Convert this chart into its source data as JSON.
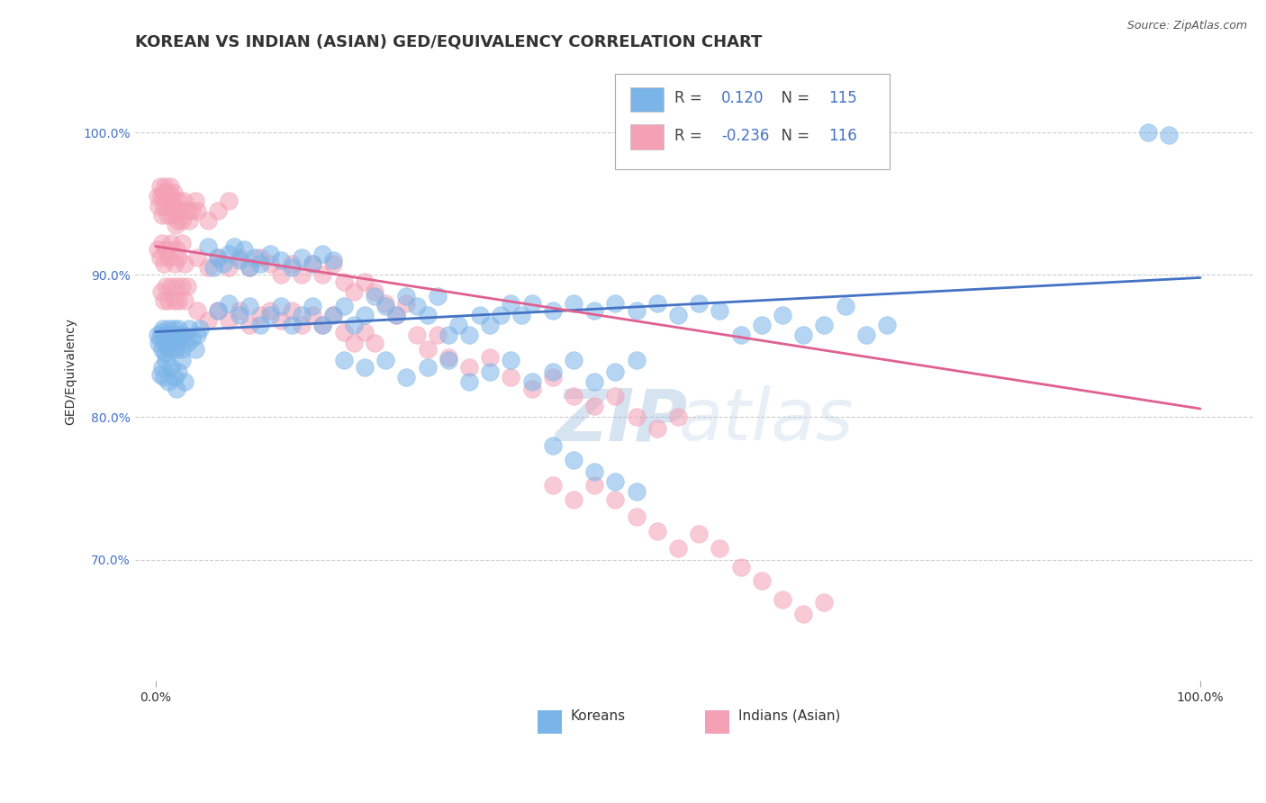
{
  "title": "KOREAN VS INDIAN (ASIAN) GED/EQUIVALENCY CORRELATION CHART",
  "source": "Source: ZipAtlas.com",
  "ylabel": "GED/Equivalency",
  "y_tick_labels": [
    "70.0%",
    "80.0%",
    "90.0%",
    "100.0%"
  ],
  "y_tick_values": [
    0.7,
    0.8,
    0.9,
    1.0
  ],
  "x_range": [
    -0.02,
    1.05
  ],
  "y_range": [
    0.615,
    1.05
  ],
  "legend_entries": [
    {
      "label": "Koreans",
      "color": "#7ab4e8",
      "R": "0.120",
      "N": "115"
    },
    {
      "label": "Indians (Asian)",
      "color": "#f4a0b5",
      "R": "-0.236",
      "N": "116"
    }
  ],
  "blue_scatter": [
    [
      0.002,
      0.858
    ],
    [
      0.003,
      0.852
    ],
    [
      0.004,
      0.855
    ],
    [
      0.005,
      0.86
    ],
    [
      0.006,
      0.848
    ],
    [
      0.007,
      0.862
    ],
    [
      0.008,
      0.855
    ],
    [
      0.009,
      0.845
    ],
    [
      0.01,
      0.858
    ],
    [
      0.011,
      0.85
    ],
    [
      0.012,
      0.862
    ],
    [
      0.013,
      0.855
    ],
    [
      0.014,
      0.848
    ],
    [
      0.015,
      0.858
    ],
    [
      0.016,
      0.852
    ],
    [
      0.017,
      0.862
    ],
    [
      0.018,
      0.855
    ],
    [
      0.019,
      0.848
    ],
    [
      0.02,
      0.858
    ],
    [
      0.021,
      0.852
    ],
    [
      0.022,
      0.862
    ],
    [
      0.023,
      0.855
    ],
    [
      0.025,
      0.848
    ],
    [
      0.027,
      0.858
    ],
    [
      0.03,
      0.852
    ],
    [
      0.032,
      0.862
    ],
    [
      0.035,
      0.855
    ],
    [
      0.038,
      0.848
    ],
    [
      0.04,
      0.858
    ],
    [
      0.042,
      0.862
    ],
    [
      0.004,
      0.83
    ],
    [
      0.006,
      0.835
    ],
    [
      0.008,
      0.828
    ],
    [
      0.01,
      0.84
    ],
    [
      0.012,
      0.825
    ],
    [
      0.015,
      0.835
    ],
    [
      0.018,
      0.828
    ],
    [
      0.02,
      0.82
    ],
    [
      0.022,
      0.832
    ],
    [
      0.025,
      0.84
    ],
    [
      0.028,
      0.825
    ],
    [
      0.05,
      0.92
    ],
    [
      0.055,
      0.905
    ],
    [
      0.06,
      0.912
    ],
    [
      0.065,
      0.908
    ],
    [
      0.07,
      0.915
    ],
    [
      0.075,
      0.92
    ],
    [
      0.08,
      0.91
    ],
    [
      0.085,
      0.918
    ],
    [
      0.09,
      0.905
    ],
    [
      0.095,
      0.912
    ],
    [
      0.1,
      0.908
    ],
    [
      0.11,
      0.915
    ],
    [
      0.12,
      0.91
    ],
    [
      0.13,
      0.905
    ],
    [
      0.14,
      0.912
    ],
    [
      0.15,
      0.908
    ],
    [
      0.16,
      0.915
    ],
    [
      0.17,
      0.91
    ],
    [
      0.06,
      0.875
    ],
    [
      0.07,
      0.88
    ],
    [
      0.08,
      0.872
    ],
    [
      0.09,
      0.878
    ],
    [
      0.1,
      0.865
    ],
    [
      0.11,
      0.872
    ],
    [
      0.12,
      0.878
    ],
    [
      0.13,
      0.865
    ],
    [
      0.14,
      0.872
    ],
    [
      0.15,
      0.878
    ],
    [
      0.16,
      0.865
    ],
    [
      0.17,
      0.872
    ],
    [
      0.18,
      0.878
    ],
    [
      0.19,
      0.865
    ],
    [
      0.2,
      0.872
    ],
    [
      0.21,
      0.885
    ],
    [
      0.22,
      0.878
    ],
    [
      0.23,
      0.872
    ],
    [
      0.24,
      0.885
    ],
    [
      0.25,
      0.878
    ],
    [
      0.26,
      0.872
    ],
    [
      0.27,
      0.885
    ],
    [
      0.28,
      0.858
    ],
    [
      0.29,
      0.865
    ],
    [
      0.3,
      0.858
    ],
    [
      0.31,
      0.872
    ],
    [
      0.32,
      0.865
    ],
    [
      0.33,
      0.872
    ],
    [
      0.34,
      0.88
    ],
    [
      0.35,
      0.872
    ],
    [
      0.36,
      0.88
    ],
    [
      0.38,
      0.875
    ],
    [
      0.4,
      0.88
    ],
    [
      0.42,
      0.875
    ],
    [
      0.44,
      0.88
    ],
    [
      0.46,
      0.875
    ],
    [
      0.48,
      0.88
    ],
    [
      0.5,
      0.872
    ],
    [
      0.52,
      0.88
    ],
    [
      0.54,
      0.875
    ],
    [
      0.56,
      0.858
    ],
    [
      0.58,
      0.865
    ],
    [
      0.6,
      0.872
    ],
    [
      0.62,
      0.858
    ],
    [
      0.64,
      0.865
    ],
    [
      0.66,
      0.878
    ],
    [
      0.68,
      0.858
    ],
    [
      0.7,
      0.865
    ],
    [
      0.18,
      0.84
    ],
    [
      0.2,
      0.835
    ],
    [
      0.22,
      0.84
    ],
    [
      0.24,
      0.828
    ],
    [
      0.26,
      0.835
    ],
    [
      0.28,
      0.84
    ],
    [
      0.3,
      0.825
    ],
    [
      0.32,
      0.832
    ],
    [
      0.34,
      0.84
    ],
    [
      0.36,
      0.825
    ],
    [
      0.38,
      0.832
    ],
    [
      0.4,
      0.84
    ],
    [
      0.42,
      0.825
    ],
    [
      0.44,
      0.832
    ],
    [
      0.46,
      0.84
    ],
    [
      0.38,
      0.78
    ],
    [
      0.4,
      0.77
    ],
    [
      0.42,
      0.762
    ],
    [
      0.44,
      0.755
    ],
    [
      0.46,
      0.748
    ],
    [
      0.95,
      1.0
    ],
    [
      0.97,
      0.998
    ]
  ],
  "pink_scatter": [
    [
      0.002,
      0.955
    ],
    [
      0.003,
      0.948
    ],
    [
      0.004,
      0.962
    ],
    [
      0.005,
      0.955
    ],
    [
      0.006,
      0.942
    ],
    [
      0.007,
      0.958
    ],
    [
      0.008,
      0.948
    ],
    [
      0.009,
      0.962
    ],
    [
      0.01,
      0.955
    ],
    [
      0.011,
      0.942
    ],
    [
      0.012,
      0.958
    ],
    [
      0.013,
      0.948
    ],
    [
      0.014,
      0.962
    ],
    [
      0.015,
      0.955
    ],
    [
      0.016,
      0.942
    ],
    [
      0.017,
      0.958
    ],
    [
      0.018,
      0.948
    ],
    [
      0.019,
      0.935
    ],
    [
      0.02,
      0.945
    ],
    [
      0.021,
      0.938
    ],
    [
      0.022,
      0.952
    ],
    [
      0.023,
      0.945
    ],
    [
      0.025,
      0.938
    ],
    [
      0.027,
      0.952
    ],
    [
      0.03,
      0.945
    ],
    [
      0.032,
      0.938
    ],
    [
      0.035,
      0.945
    ],
    [
      0.038,
      0.952
    ],
    [
      0.002,
      0.918
    ],
    [
      0.004,
      0.912
    ],
    [
      0.006,
      0.922
    ],
    [
      0.008,
      0.908
    ],
    [
      0.01,
      0.918
    ],
    [
      0.012,
      0.912
    ],
    [
      0.015,
      0.922
    ],
    [
      0.018,
      0.908
    ],
    [
      0.02,
      0.918
    ],
    [
      0.022,
      0.912
    ],
    [
      0.025,
      0.922
    ],
    [
      0.028,
      0.908
    ],
    [
      0.005,
      0.888
    ],
    [
      0.008,
      0.882
    ],
    [
      0.01,
      0.892
    ],
    [
      0.012,
      0.882
    ],
    [
      0.015,
      0.892
    ],
    [
      0.018,
      0.882
    ],
    [
      0.02,
      0.892
    ],
    [
      0.022,
      0.882
    ],
    [
      0.025,
      0.892
    ],
    [
      0.028,
      0.882
    ],
    [
      0.03,
      0.892
    ],
    [
      0.04,
      0.945
    ],
    [
      0.05,
      0.938
    ],
    [
      0.06,
      0.945
    ],
    [
      0.07,
      0.952
    ],
    [
      0.04,
      0.912
    ],
    [
      0.05,
      0.905
    ],
    [
      0.06,
      0.912
    ],
    [
      0.07,
      0.905
    ],
    [
      0.08,
      0.912
    ],
    [
      0.09,
      0.905
    ],
    [
      0.1,
      0.912
    ],
    [
      0.04,
      0.875
    ],
    [
      0.05,
      0.868
    ],
    [
      0.06,
      0.875
    ],
    [
      0.07,
      0.868
    ],
    [
      0.08,
      0.875
    ],
    [
      0.09,
      0.865
    ],
    [
      0.1,
      0.872
    ],
    [
      0.11,
      0.908
    ],
    [
      0.12,
      0.9
    ],
    [
      0.13,
      0.908
    ],
    [
      0.14,
      0.9
    ],
    [
      0.15,
      0.908
    ],
    [
      0.16,
      0.9
    ],
    [
      0.17,
      0.908
    ],
    [
      0.11,
      0.875
    ],
    [
      0.12,
      0.868
    ],
    [
      0.13,
      0.875
    ],
    [
      0.14,
      0.865
    ],
    [
      0.15,
      0.872
    ],
    [
      0.16,
      0.865
    ],
    [
      0.17,
      0.872
    ],
    [
      0.18,
      0.895
    ],
    [
      0.19,
      0.888
    ],
    [
      0.2,
      0.895
    ],
    [
      0.21,
      0.888
    ],
    [
      0.18,
      0.86
    ],
    [
      0.19,
      0.852
    ],
    [
      0.2,
      0.86
    ],
    [
      0.21,
      0.852
    ],
    [
      0.22,
      0.88
    ],
    [
      0.23,
      0.872
    ],
    [
      0.24,
      0.88
    ],
    [
      0.25,
      0.858
    ],
    [
      0.26,
      0.848
    ],
    [
      0.27,
      0.858
    ],
    [
      0.28,
      0.842
    ],
    [
      0.3,
      0.835
    ],
    [
      0.32,
      0.842
    ],
    [
      0.34,
      0.828
    ],
    [
      0.36,
      0.82
    ],
    [
      0.38,
      0.828
    ],
    [
      0.4,
      0.815
    ],
    [
      0.42,
      0.808
    ],
    [
      0.44,
      0.815
    ],
    [
      0.46,
      0.8
    ],
    [
      0.48,
      0.792
    ],
    [
      0.5,
      0.8
    ],
    [
      0.38,
      0.752
    ],
    [
      0.4,
      0.742
    ],
    [
      0.42,
      0.752
    ],
    [
      0.44,
      0.742
    ],
    [
      0.46,
      0.73
    ],
    [
      0.48,
      0.72
    ],
    [
      0.5,
      0.708
    ],
    [
      0.52,
      0.718
    ],
    [
      0.54,
      0.708
    ],
    [
      0.56,
      0.695
    ],
    [
      0.58,
      0.685
    ],
    [
      0.6,
      0.672
    ],
    [
      0.62,
      0.662
    ],
    [
      0.64,
      0.67
    ]
  ],
  "blue_line": {
    "x0": 0.0,
    "y0": 0.86,
    "x1": 1.0,
    "y1": 0.898
  },
  "pink_line": {
    "x0": 0.0,
    "y0": 0.92,
    "x1": 1.0,
    "y1": 0.806
  },
  "blue_color": "#7ab4e8",
  "pink_color": "#f4a0b5",
  "blue_line_color": "#4472c4",
  "pink_line_color": "#e06090",
  "background_color": "#ffffff",
  "watermark_zip": "ZIP",
  "watermark_atlas": "atlas",
  "title_fontsize": 13,
  "axis_label_fontsize": 10,
  "tick_fontsize": 10,
  "legend_fontsize": 12,
  "source_fontsize": 9
}
